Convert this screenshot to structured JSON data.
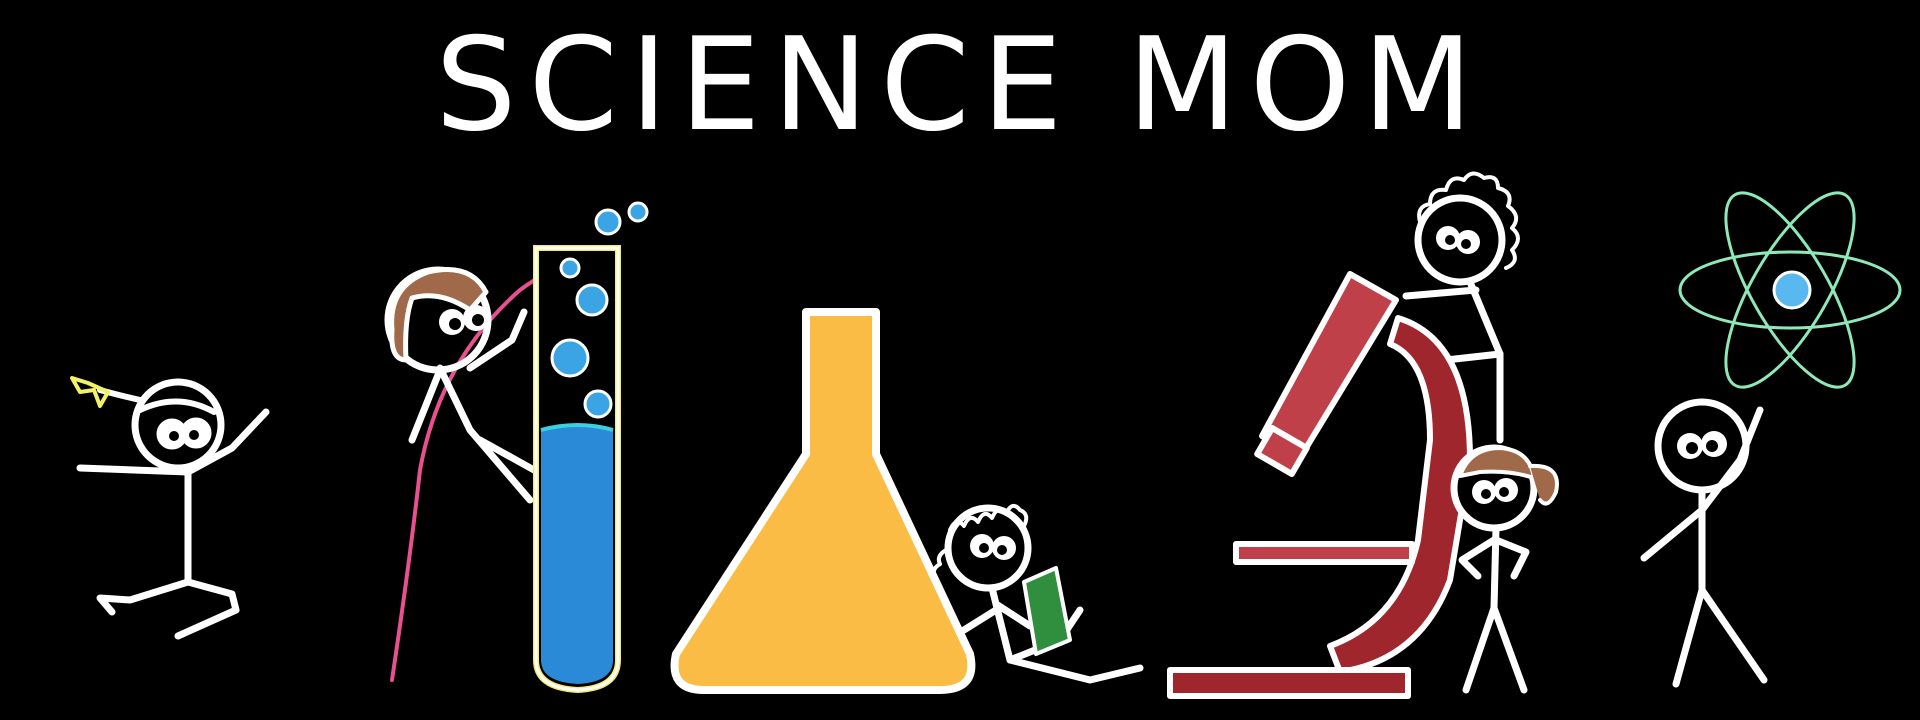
{
  "banner": {
    "title": "SCIENCE MOM"
  },
  "icons": [
    "jumping-girl-with-bow-icon",
    "girl-climbing-rope-icon",
    "test-tube-icon",
    "erlenmeyer-flask-icon",
    "child-reading-book-icon",
    "microscope-icon",
    "curly-haired-person-icon",
    "ponytail-girl-icon",
    "person-holding-atom-icon",
    "atom-icon"
  ],
  "colors": {
    "background": "#000000",
    "line": "#ffffff",
    "test_tube_outline": "#f4ec6c",
    "test_tube_liquid": "#2b8ad8",
    "bubbles": "#3aa4e4",
    "flask": "#fbbc45",
    "microscope": "#c0404a",
    "microscope_dark": "#a0262e",
    "atom_orbit": "#8fe8b8",
    "atom_nucleus": "#5ab8f0",
    "book": "#2f8f3f",
    "hair_brown": "#a0694a",
    "rope": "#e8508f",
    "bow": "#f2f26a"
  }
}
